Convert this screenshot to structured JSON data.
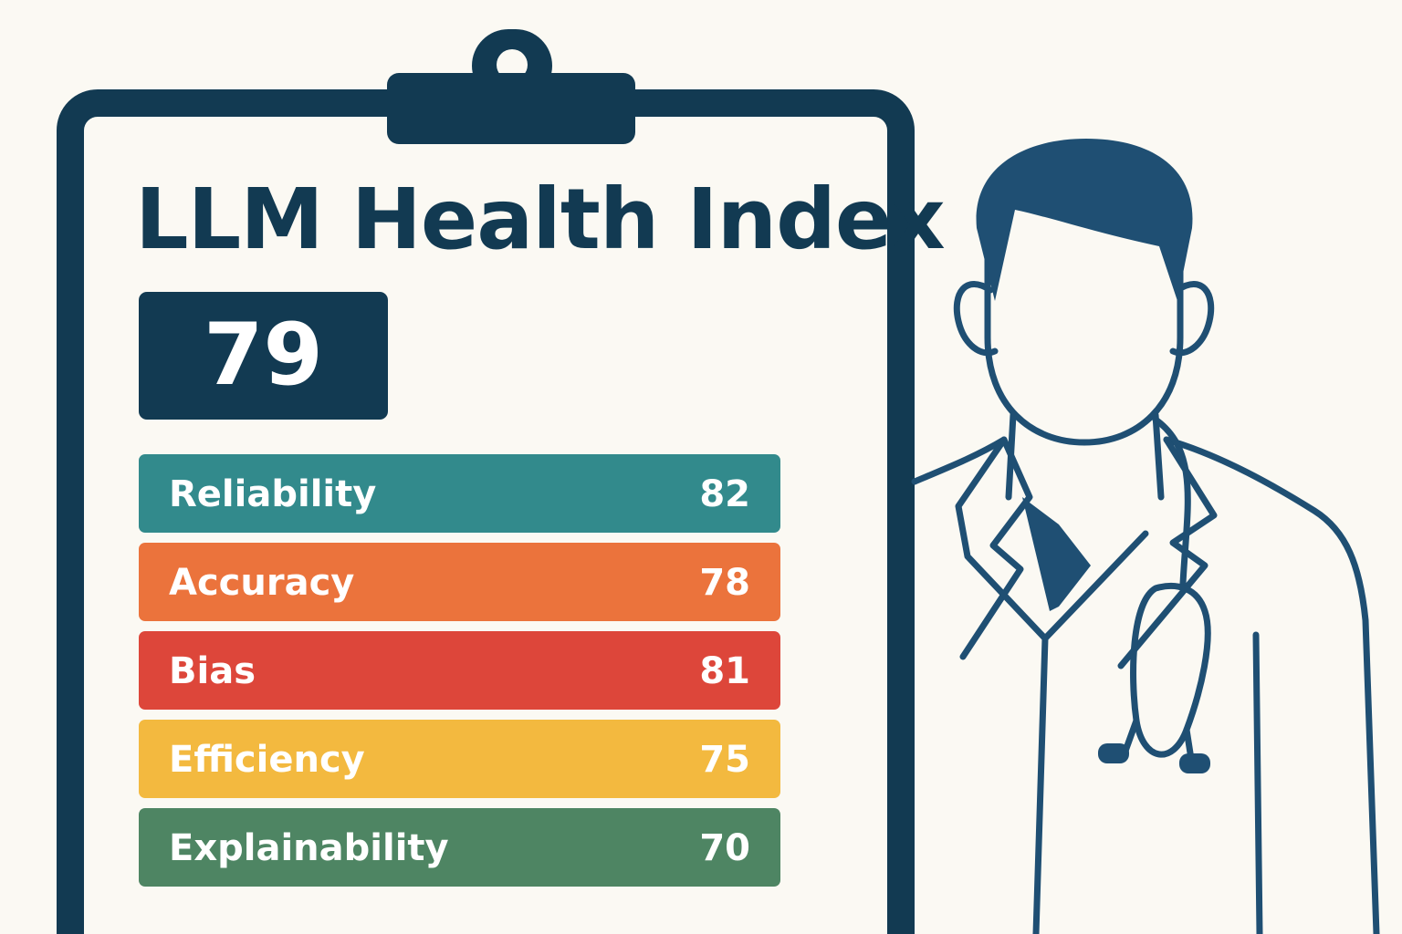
{
  "title": "LLM Health Index",
  "overall_score": "79",
  "colors": {
    "navy": "#123a52",
    "doctor_blue": "#1f4f73",
    "background": "#fbf9f3"
  },
  "metrics": [
    {
      "label": "Reliability",
      "value": "82",
      "color": "#328a8c"
    },
    {
      "label": "Accuracy",
      "value": "78",
      "color": "#eb733c"
    },
    {
      "label": "Bias",
      "value": "81",
      "color": "#dd463a"
    },
    {
      "label": "Efficiency",
      "value": "75",
      "color": "#f3b93f"
    },
    {
      "label": "Explainability",
      "value": "70",
      "color": "#4e8563"
    }
  ],
  "icons": {
    "clipboard": "clipboard-icon",
    "doctor": "doctor-icon",
    "stethoscope": "stethoscope-icon"
  }
}
